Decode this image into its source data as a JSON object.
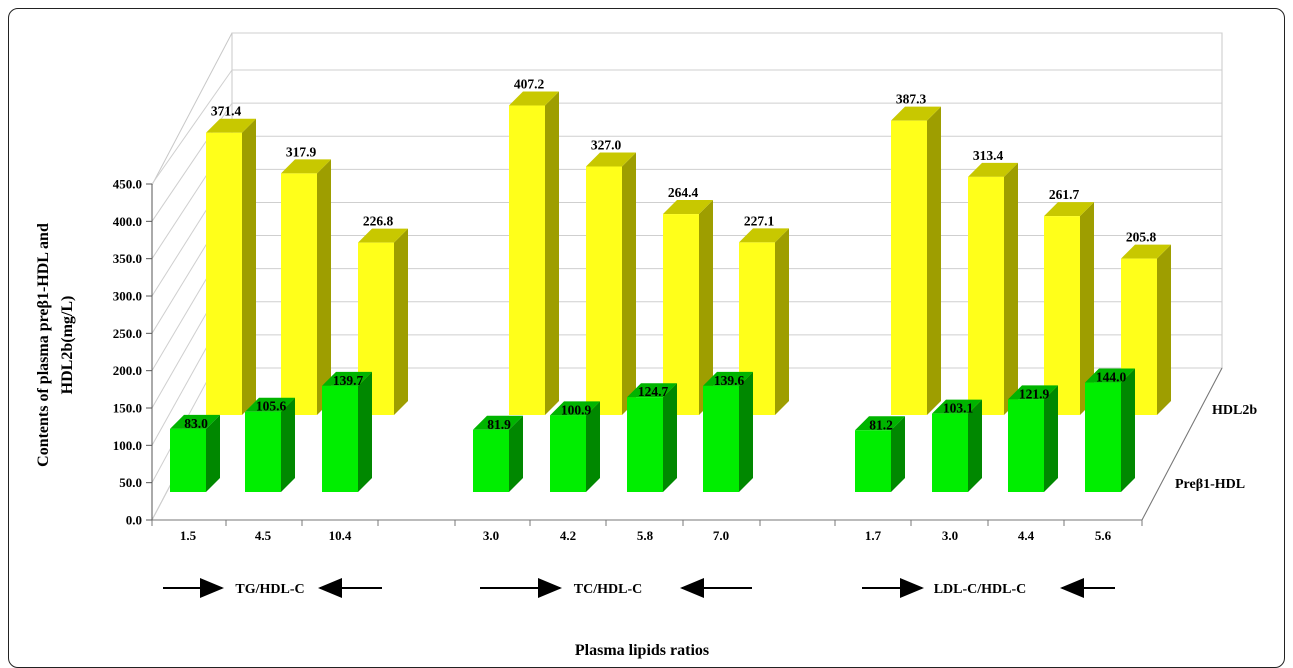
{
  "chart_data": {
    "type": "bar",
    "xlabel": "Plasma lipids ratios",
    "ylabel_line1": "Contents of plasma preβ1-HDL and",
    "ylabel_line2": "HDL2b(mg/L)",
    "y_ticks": [
      "0.0",
      "50.0",
      "100.0",
      "150.0",
      "200.0",
      "250.0",
      "300.0",
      "350.0",
      "400.0",
      "450.0"
    ],
    "ylim": [
      0,
      450
    ],
    "depth_axis_labels": [
      "Preβ1-HDL",
      "HDL2b"
    ],
    "groups": [
      {
        "name": "TG/HDL-C",
        "categories": [
          "1.5",
          "4.5",
          "10.4"
        ],
        "series": [
          {
            "name": "HDL2b",
            "values": [
              371.4,
              317.9,
              226.8
            ]
          },
          {
            "name": "Preβ1-HDL",
            "values": [
              83.0,
              105.6,
              139.7
            ]
          }
        ]
      },
      {
        "name": "TC/HDL-C",
        "categories": [
          "3.0",
          "4.2",
          "5.8",
          "7.0"
        ],
        "series": [
          {
            "name": "HDL2b",
            "values": [
              407.2,
              327.0,
              264.4,
              227.1
            ]
          },
          {
            "name": "Preβ1-HDL",
            "values": [
              81.9,
              100.9,
              124.7,
              139.6
            ]
          }
        ]
      },
      {
        "name": "LDL-C/HDL-C",
        "categories": [
          "1.7",
          "3.0",
          "4.4",
          "5.6"
        ],
        "series": [
          {
            "name": "HDL2b",
            "values": [
              387.3,
              313.4,
              261.7,
              205.8
            ]
          },
          {
            "name": "Preβ1-HDL",
            "values": [
              81.2,
              103.1,
              121.9,
              144.0
            ]
          }
        ]
      }
    ],
    "colors": {
      "HDL2b": {
        "front": "#ffff1a",
        "side": "#9e9e00",
        "top": "#c8c800"
      },
      "Preβ1-HDL": {
        "front": "#00ee00",
        "side": "#008800",
        "top": "#00b400"
      }
    },
    "grid": true,
    "legend": "depth-axis labels on right"
  }
}
